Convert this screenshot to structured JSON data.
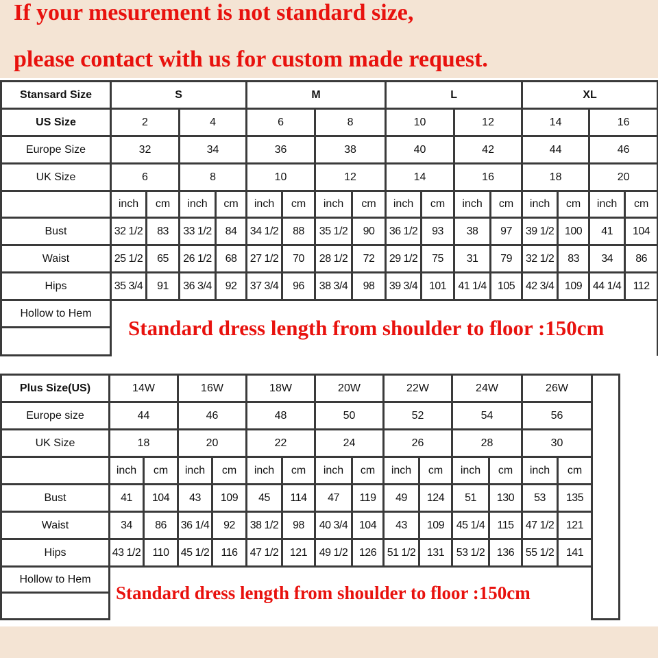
{
  "header": {
    "line1": "If your mesurement is not standard size,",
    "line2": "please contact with us for custom made request."
  },
  "standard_table": {
    "title": "Stansard Size",
    "groups": [
      "S",
      "M",
      "L",
      "XL"
    ],
    "rows": [
      {
        "label": "US Size",
        "bold": true,
        "values": [
          "2",
          "4",
          "6",
          "8",
          "10",
          "12",
          "14",
          "16"
        ]
      },
      {
        "label": "Europe Size",
        "values": [
          "32",
          "34",
          "36",
          "38",
          "40",
          "42",
          "44",
          "46"
        ]
      },
      {
        "label": "UK Size",
        "values": [
          "6",
          "8",
          "10",
          "12",
          "14",
          "16",
          "18",
          "20"
        ]
      }
    ],
    "units": [
      "inch",
      "cm"
    ],
    "measurements": [
      {
        "label": "Bust",
        "values": [
          "32 1/2",
          "83",
          "33 1/2",
          "84",
          "34 1/2",
          "88",
          "35 1/2",
          "90",
          "36 1/2",
          "93",
          "38",
          "97",
          "39 1/2",
          "100",
          "41",
          "104"
        ]
      },
      {
        "label": "Waist",
        "values": [
          "25 1/2",
          "65",
          "26 1/2",
          "68",
          "27 1/2",
          "70",
          "28 1/2",
          "72",
          "29 1/2",
          "75",
          "31",
          "79",
          "32 1/2",
          "83",
          "34",
          "86"
        ]
      },
      {
        "label": "Hips",
        "values": [
          "35 3/4",
          "91",
          "36 3/4",
          "92",
          "37 3/4",
          "96",
          "38 3/4",
          "98",
          "39 3/4",
          "101",
          "41 1/4",
          "105",
          "42 3/4",
          "109",
          "44 1/4",
          "112"
        ]
      }
    ],
    "hollow_label": "Hollow to Hem",
    "note": "Standard dress length from shoulder to floor :150cm"
  },
  "plus_table": {
    "title": "Plus Size(US)",
    "rows": [
      {
        "label": "Europe size",
        "values": [
          "44",
          "46",
          "48",
          "50",
          "52",
          "54",
          "56"
        ]
      },
      {
        "label": "UK Size",
        "values": [
          "18",
          "20",
          "22",
          "24",
          "26",
          "28",
          "30"
        ]
      }
    ],
    "sizes": [
      "14W",
      "16W",
      "18W",
      "20W",
      "22W",
      "24W",
      "26W"
    ],
    "units": [
      "inch",
      "cm"
    ],
    "measurements": [
      {
        "label": "Bust",
        "values": [
          "41",
          "104",
          "43",
          "109",
          "45",
          "114",
          "47",
          "119",
          "49",
          "124",
          "51",
          "130",
          "53",
          "135"
        ]
      },
      {
        "label": "Waist",
        "values": [
          "34",
          "86",
          "36 1/4",
          "92",
          "38 1/2",
          "98",
          "40 3/4",
          "104",
          "43",
          "109",
          "45 1/4",
          "115",
          "47 1/2",
          "121"
        ]
      },
      {
        "label": "Hips",
        "values": [
          "43 1/2",
          "110",
          "45 1/2",
          "116",
          "47 1/2",
          "121",
          "49 1/2",
          "126",
          "51 1/2",
          "131",
          "53 1/2",
          "136",
          "55 1/2",
          "141"
        ]
      }
    ],
    "hollow_label": "Hollow to Hem",
    "note": "Standard dress length from shoulder to floor :150cm"
  },
  "colors": {
    "headline": "#e8120e",
    "background": "#f4e4d4",
    "grid": "#3a3a3a"
  }
}
